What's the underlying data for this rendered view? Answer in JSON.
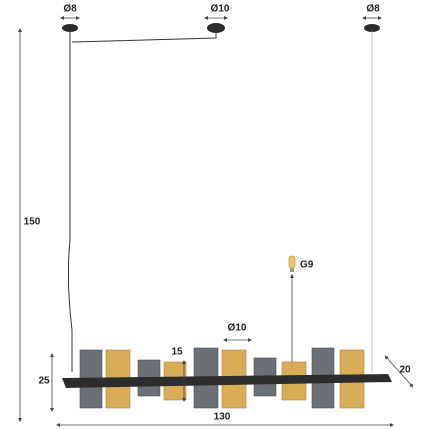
{
  "labels": {
    "canopy_left": "Ø8",
    "canopy_middle": "Ø10",
    "canopy_right": "Ø8",
    "height_total": "150",
    "bulb": "G9",
    "shade_diameter": "Ø10",
    "shade_height": "15",
    "fixture_height": "25",
    "depth": "20",
    "width": "130"
  }
}
